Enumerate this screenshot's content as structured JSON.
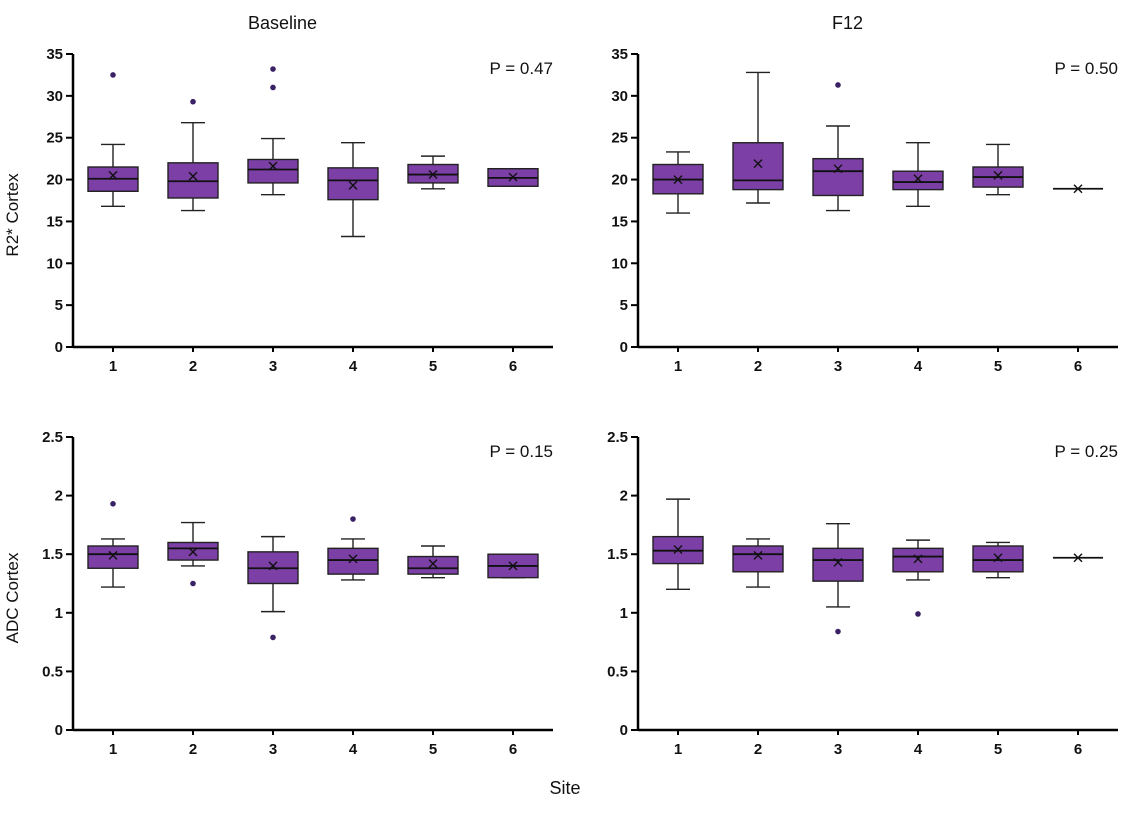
{
  "xlabel": "Site",
  "style": {
    "box_fill": "#7b3fa6",
    "box_stroke": "#222222",
    "median_color": "#111111",
    "mean_color": "#111111",
    "whisker_color": "#222222",
    "outlier_color": "#3a2166",
    "axis_color": "#000000"
  },
  "chart_data": [
    {
      "type": "box",
      "title": "Baseline",
      "p_label": "P = 0.47",
      "ylabel": "R2* Cortex",
      "ylim": [
        0,
        35
      ],
      "yticks": [
        0,
        5,
        10,
        15,
        20,
        25,
        30,
        35
      ],
      "categories": [
        "1",
        "2",
        "3",
        "4",
        "5",
        "6"
      ],
      "boxes": [
        {
          "site": "1",
          "whislo": 16.8,
          "q1": 18.6,
          "med": 20.1,
          "q3": 21.5,
          "whishi": 24.2,
          "mean": 20.5,
          "outliers": [
            32.5
          ]
        },
        {
          "site": "2",
          "whislo": 16.3,
          "q1": 17.8,
          "med": 19.8,
          "q3": 22.0,
          "whishi": 26.8,
          "mean": 20.4,
          "outliers": [
            29.3
          ]
        },
        {
          "site": "3",
          "whislo": 18.2,
          "q1": 19.6,
          "med": 21.2,
          "q3": 22.4,
          "whishi": 24.9,
          "mean": 21.6,
          "outliers": [
            31.0,
            33.2
          ]
        },
        {
          "site": "4",
          "whislo": 13.2,
          "q1": 17.6,
          "med": 19.9,
          "q3": 21.4,
          "whishi": 24.4,
          "mean": 19.3,
          "outliers": []
        },
        {
          "site": "5",
          "whislo": 18.9,
          "q1": 19.6,
          "med": 20.6,
          "q3": 21.8,
          "whishi": 22.8,
          "mean": 20.6,
          "outliers": []
        },
        {
          "site": "6",
          "whislo": 19.2,
          "q1": 19.2,
          "med": 20.2,
          "q3": 21.3,
          "whishi": 21.3,
          "mean": 20.3,
          "outliers": []
        }
      ]
    },
    {
      "type": "box",
      "title": "F12",
      "p_label": "P = 0.50",
      "ylim": [
        0,
        35
      ],
      "yticks": [
        0,
        5,
        10,
        15,
        20,
        25,
        30,
        35
      ],
      "categories": [
        "1",
        "2",
        "3",
        "4",
        "5",
        "6"
      ],
      "boxes": [
        {
          "site": "1",
          "whislo": 16.0,
          "q1": 18.3,
          "med": 20.0,
          "q3": 21.8,
          "whishi": 23.3,
          "mean": 20.0,
          "outliers": []
        },
        {
          "site": "2",
          "whislo": 17.2,
          "q1": 18.8,
          "med": 19.9,
          "q3": 24.4,
          "whishi": 32.8,
          "mean": 21.9,
          "outliers": []
        },
        {
          "site": "3",
          "whislo": 16.3,
          "q1": 18.1,
          "med": 21.0,
          "q3": 22.5,
          "whishi": 26.4,
          "mean": 21.3,
          "outliers": [
            31.3
          ]
        },
        {
          "site": "4",
          "whislo": 16.8,
          "q1": 18.8,
          "med": 19.7,
          "q3": 21.0,
          "whishi": 24.4,
          "mean": 20.1,
          "outliers": []
        },
        {
          "site": "5",
          "whislo": 18.2,
          "q1": 19.1,
          "med": 20.3,
          "q3": 21.5,
          "whishi": 24.2,
          "mean": 20.5,
          "outliers": []
        },
        {
          "site": "6",
          "whislo": 18.9,
          "q1": 18.9,
          "med": 18.9,
          "q3": 18.9,
          "whishi": 18.9,
          "mean": 18.9,
          "outliers": []
        }
      ]
    },
    {
      "type": "box",
      "p_label": "P = 0.15",
      "ylabel": "ADC Cortex",
      "ylim": [
        0,
        2.5
      ],
      "yticks": [
        0,
        0.5,
        1,
        1.5,
        2,
        2.5
      ],
      "categories": [
        "1",
        "2",
        "3",
        "4",
        "5",
        "6"
      ],
      "boxes": [
        {
          "site": "1",
          "whislo": 1.22,
          "q1": 1.38,
          "med": 1.5,
          "q3": 1.57,
          "whishi": 1.63,
          "mean": 1.49,
          "outliers": [
            1.93
          ]
        },
        {
          "site": "2",
          "whislo": 1.4,
          "q1": 1.45,
          "med": 1.55,
          "q3": 1.6,
          "whishi": 1.77,
          "mean": 1.52,
          "outliers": [
            1.25
          ]
        },
        {
          "site": "3",
          "whislo": 1.01,
          "q1": 1.25,
          "med": 1.38,
          "q3": 1.52,
          "whishi": 1.65,
          "mean": 1.4,
          "outliers": [
            0.79
          ]
        },
        {
          "site": "4",
          "whislo": 1.28,
          "q1": 1.33,
          "med": 1.45,
          "q3": 1.55,
          "whishi": 1.63,
          "mean": 1.46,
          "outliers": [
            1.8
          ]
        },
        {
          "site": "5",
          "whislo": 1.3,
          "q1": 1.33,
          "med": 1.38,
          "q3": 1.48,
          "whishi": 1.57,
          "mean": 1.42,
          "outliers": []
        },
        {
          "site": "6",
          "whislo": 1.3,
          "q1": 1.3,
          "med": 1.4,
          "q3": 1.5,
          "whishi": 1.5,
          "mean": 1.4,
          "outliers": []
        }
      ]
    },
    {
      "type": "box",
      "p_label": "P = 0.25",
      "ylim": [
        0,
        2.5
      ],
      "yticks": [
        0,
        0.5,
        1,
        1.5,
        2,
        2.5
      ],
      "categories": [
        "1",
        "2",
        "3",
        "4",
        "5",
        "6"
      ],
      "boxes": [
        {
          "site": "1",
          "whislo": 1.2,
          "q1": 1.42,
          "med": 1.53,
          "q3": 1.65,
          "whishi": 1.97,
          "mean": 1.54,
          "outliers": []
        },
        {
          "site": "2",
          "whislo": 1.22,
          "q1": 1.35,
          "med": 1.5,
          "q3": 1.57,
          "whishi": 1.63,
          "mean": 1.49,
          "outliers": []
        },
        {
          "site": "3",
          "whislo": 1.05,
          "q1": 1.27,
          "med": 1.45,
          "q3": 1.55,
          "whishi": 1.76,
          "mean": 1.43,
          "outliers": [
            0.84
          ]
        },
        {
          "site": "4",
          "whislo": 1.28,
          "q1": 1.35,
          "med": 1.48,
          "q3": 1.55,
          "whishi": 1.62,
          "mean": 1.46,
          "outliers": [
            0.99
          ]
        },
        {
          "site": "5",
          "whislo": 1.3,
          "q1": 1.35,
          "med": 1.45,
          "q3": 1.57,
          "whishi": 1.6,
          "mean": 1.47,
          "outliers": []
        },
        {
          "site": "6",
          "whislo": 1.47,
          "q1": 1.47,
          "med": 1.47,
          "q3": 1.47,
          "whishi": 1.47,
          "mean": 1.47,
          "outliers": []
        }
      ]
    }
  ]
}
